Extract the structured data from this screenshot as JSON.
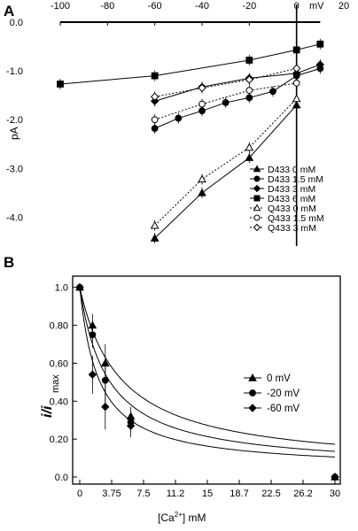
{
  "chart_data": [
    {
      "panel": "A",
      "type": "line",
      "xlabel_unit": "mV",
      "ylabel": "pA",
      "x_ticks": [
        "-100",
        "-80",
        "-60",
        "-40",
        "-20",
        "0",
        "20"
      ],
      "y_ticks": [
        "0.0",
        "-1.0",
        "-2.0",
        "-3.0",
        "-4.0"
      ],
      "xlim": [
        -100,
        20
      ],
      "ylim": [
        -4.5,
        0.0
      ],
      "grid": false,
      "legend_position": "right",
      "series": [
        {
          "name": "D433 0 mM",
          "marker": "triangle-filled",
          "line": "solid",
          "x": [
            -60,
            -40,
            -20,
            0
          ],
          "y": [
            -4.43,
            -3.5,
            -2.78,
            -1.7
          ]
        },
        {
          "name": "D433 1.5 mM",
          "marker": "circle-filled",
          "line": "solid",
          "x": [
            -60,
            -50,
            -40,
            -30,
            -20,
            -10,
            0,
            10
          ],
          "y": [
            -2.18,
            -1.97,
            -1.82,
            -1.65,
            -1.55,
            -1.42,
            -1.1,
            -0.95
          ]
        },
        {
          "name": "D433 3 mM",
          "marker": "diamond-filled",
          "line": "solid",
          "x": [
            -60,
            -40,
            -20,
            0,
            10
          ],
          "y": [
            -1.62,
            -1.33,
            -1.15,
            -1.05,
            -0.87
          ]
        },
        {
          "name": "D433 6 mM",
          "marker": "square-filled",
          "line": "solid",
          "x": [
            -100,
            -60,
            -20,
            0,
            10
          ],
          "y": [
            -1.27,
            -1.1,
            -0.78,
            -0.57,
            -0.45
          ]
        },
        {
          "name": "Q433 0 mM",
          "marker": "triangle-open",
          "line": "dotted",
          "x": [
            -60,
            -40,
            -20,
            0
          ],
          "y": [
            -4.17,
            -3.22,
            -2.57,
            -1.57
          ]
        },
        {
          "name": "Q433 1.5 mM",
          "marker": "circle-open",
          "line": "dotted",
          "x": [
            -60,
            -40,
            -20,
            0
          ],
          "y": [
            -2.0,
            -1.68,
            -1.4,
            -1.25
          ]
        },
        {
          "name": "Q433 3 mM",
          "marker": "diamond-open",
          "line": "dotted",
          "x": [
            -60,
            -40,
            -20,
            0
          ],
          "y": [
            -1.53,
            -1.35,
            -1.18,
            -0.95
          ]
        }
      ],
      "legend_entries": [
        "D433 0 mM",
        "D433 1.5 mM",
        "D433 3 mM",
        "D433 6 mM",
        "Q433 0 mM",
        "Q433 1.5 mM",
        "Q433 3 mM"
      ]
    },
    {
      "panel": "B",
      "type": "line",
      "xlabel": "[Ca2+] mM",
      "ylabel": "i/imax",
      "x_ticks": [
        "0",
        "3.75",
        "7.5",
        "11.2",
        "15",
        "18.7",
        "22.5",
        "26.2",
        "30"
      ],
      "y_ticks": [
        "0.0",
        "0.20",
        "0.40",
        "0.60",
        "0.80",
        "1.0"
      ],
      "xlim": [
        0,
        30
      ],
      "ylim": [
        0,
        1.05
      ],
      "grid": false,
      "legend_position": "right",
      "series": [
        {
          "name": "0 mV",
          "marker": "triangle-filled",
          "x": [
            0,
            1.5,
            3,
            6,
            30
          ],
          "y": [
            1.0,
            0.8,
            0.6,
            0.32,
            0.0
          ],
          "fit_k": 4.8
        },
        {
          "name": "-20 mV",
          "marker": "circle-filled",
          "x": [
            0,
            1.5,
            3,
            6,
            30
          ],
          "y": [
            1.0,
            0.75,
            0.51,
            0.29,
            0.0
          ],
          "fit_k": 3.3
        },
        {
          "name": "-60 mV",
          "marker": "diamond-filled",
          "x": [
            0,
            1.5,
            3,
            6,
            30
          ],
          "y": [
            1.0,
            0.54,
            0.37,
            0.27,
            0.0
          ],
          "fit_k": 2.2
        }
      ],
      "legend_entries": [
        "0   mV",
        "-20 mV",
        "-60 mV"
      ]
    }
  ],
  "labels": {
    "panel_a": "A",
    "panel_b": "B",
    "x_unit": "mV",
    "y_label_a": "pA",
    "x_label_b_prefix": "[Ca",
    "x_label_b_sup": "2+",
    "x_label_b_suffix": "] mM",
    "y_label_b_main": "i/i",
    "y_label_b_sub": "max"
  }
}
